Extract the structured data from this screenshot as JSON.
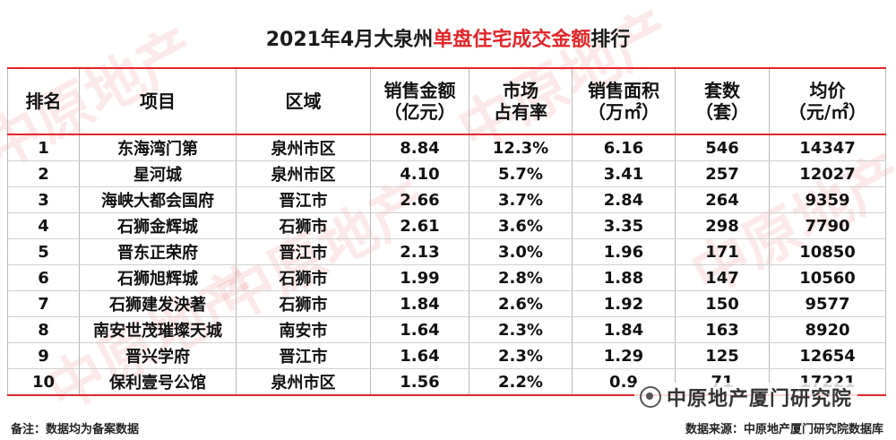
{
  "title": {
    "prefix": "2021年4月大泉州",
    "highlight": "单盘住宅成交金额",
    "suffix": "排行"
  },
  "headers": [
    {
      "line1": "排名",
      "line2": ""
    },
    {
      "line1": "项目",
      "line2": ""
    },
    {
      "line1": "区域",
      "line2": ""
    },
    {
      "line1": "销售金额",
      "line2": "（亿元）"
    },
    {
      "line1": "市场",
      "line2": "占有率"
    },
    {
      "line1": "销售面积",
      "line2": "（万㎡）"
    },
    {
      "line1": "套数",
      "line2": "（套）"
    },
    {
      "line1": "均价",
      "line2": "（元/㎡）"
    }
  ],
  "rows": [
    [
      "1",
      "东海湾门第",
      "泉州市区",
      "8.84",
      "12.3%",
      "6.16",
      "546",
      "14347"
    ],
    [
      "2",
      "星河城",
      "泉州市区",
      "4.10",
      "5.7%",
      "3.41",
      "257",
      "12027"
    ],
    [
      "3",
      "海峡大都会国府",
      "晋江市",
      "2.66",
      "3.7%",
      "2.84",
      "264",
      "9359"
    ],
    [
      "4",
      "石狮金辉城",
      "石狮市",
      "2.61",
      "3.6%",
      "3.35",
      "298",
      "7790"
    ],
    [
      "5",
      "晋东正荣府",
      "晋江市",
      "2.13",
      "3.0%",
      "1.96",
      "171",
      "10850"
    ],
    [
      "6",
      "石狮旭辉城",
      "石狮市",
      "1.99",
      "2.8%",
      "1.88",
      "147",
      "10560"
    ],
    [
      "7",
      "石狮建发泱著",
      "石狮市",
      "1.84",
      "2.6%",
      "1.92",
      "150",
      "9577"
    ],
    [
      "8",
      "南安世茂璀璨天城",
      "南安市",
      "1.64",
      "2.3%",
      "1.84",
      "163",
      "8920"
    ],
    [
      "9",
      "晋兴学府",
      "晋江市",
      "1.64",
      "2.3%",
      "1.29",
      "125",
      "12654"
    ],
    [
      "10",
      "保利壹号公馆",
      "泉州市区",
      "1.56",
      "2.2%",
      "0.9",
      "71",
      "17221"
    ]
  ],
  "footer": {
    "note": "备注：数据均为备案数据",
    "source": "数据来源：中原地产厦门研究院数据库"
  },
  "logo": {
    "text": "中原地产厦门研究院"
  },
  "watermark": {
    "text": "中原地产"
  },
  "colors": {
    "accent": "#e3262b",
    "text": "#111111",
    "watermark": "#d62828"
  }
}
